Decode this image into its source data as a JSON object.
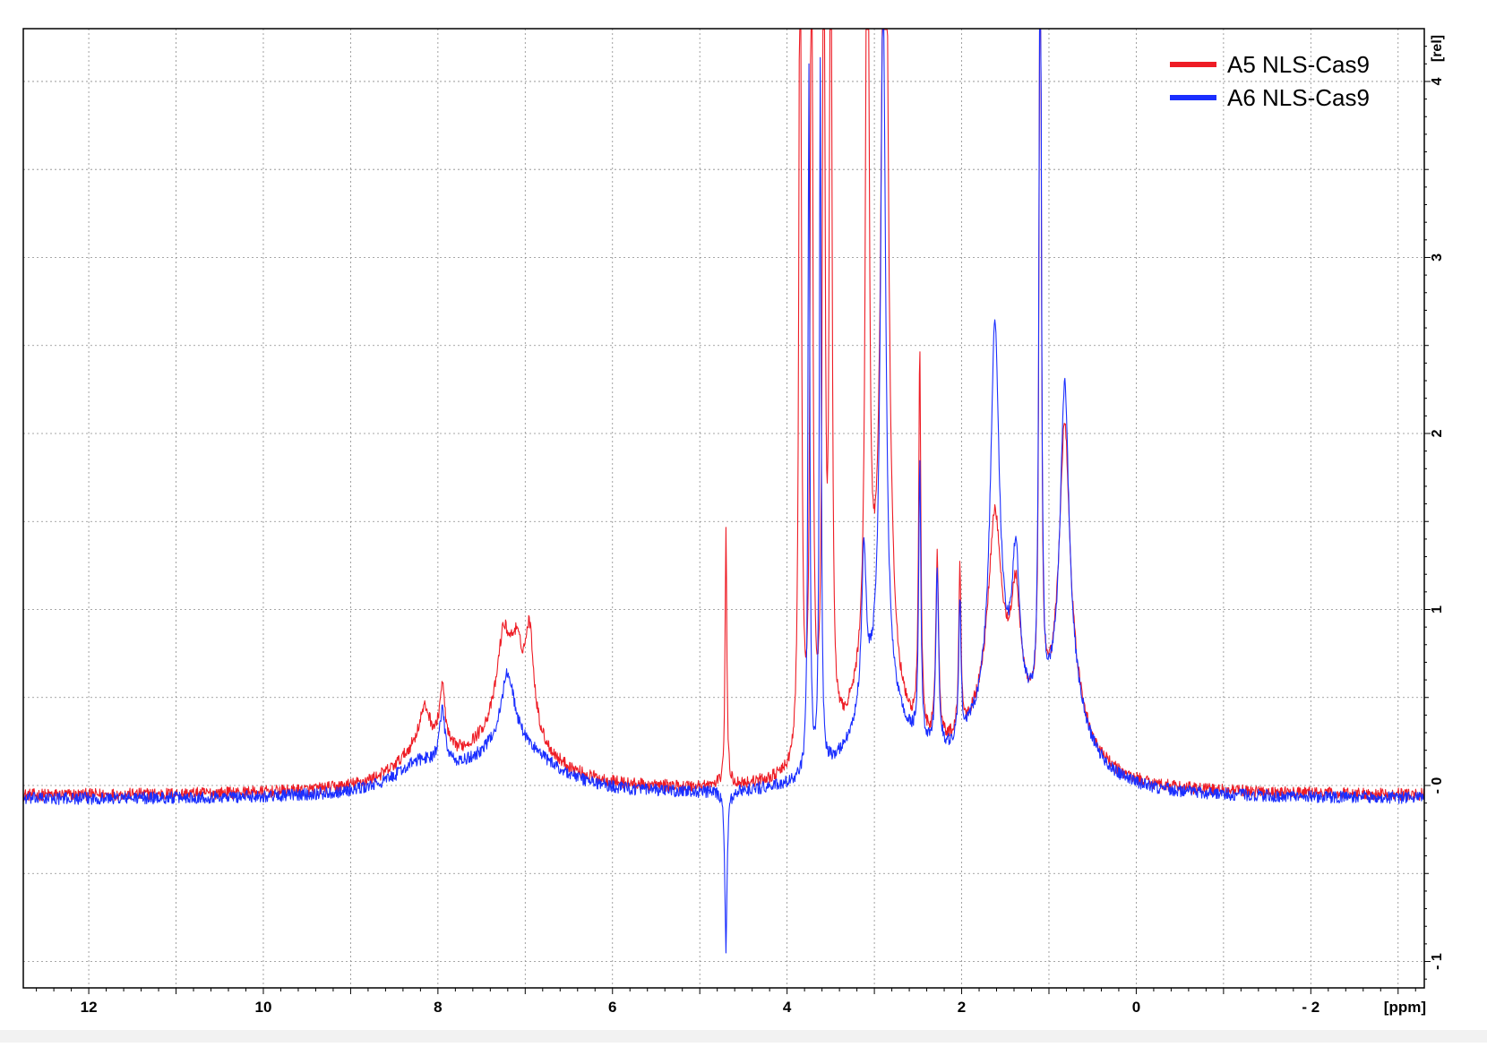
{
  "chart_data": {
    "type": "line",
    "title": "",
    "xlabel": "[ppm]",
    "ylabel": "[rel]",
    "xlim": [
      12.75,
      -3.3
    ],
    "ylim": [
      -1.15,
      4.3
    ],
    "x_reversed": true,
    "grid": true,
    "legend_position": "top-right",
    "x_ticks": [
      12,
      10,
      8,
      6,
      4,
      2,
      0,
      -2
    ],
    "x_tick_labels": [
      "12",
      "10",
      "8",
      "6",
      "4",
      "2",
      "0",
      "- 2"
    ],
    "y_ticks": [
      -1,
      0,
      1,
      2,
      3,
      4
    ],
    "y_tick_labels": [
      "- 1",
      "- 0",
      "1",
      "2",
      "3",
      "4"
    ],
    "series": [
      {
        "name": "A5 NLS-Cas9",
        "color": "#ee1c25",
        "baseline": -0.06,
        "noise": 0.035,
        "peaks": [
          {
            "ppm": 8.15,
            "height": 0.22,
            "width": 0.08
          },
          {
            "ppm": 7.95,
            "height": 0.35,
            "width": 0.04
          },
          {
            "ppm": 7.25,
            "height": 0.48,
            "width": 0.09
          },
          {
            "ppm": 7.1,
            "height": 0.4,
            "width": 0.09
          },
          {
            "ppm": 6.95,
            "height": 0.55,
            "width": 0.06
          },
          {
            "ppm": 4.7,
            "height": 1.45,
            "width": 0.012
          },
          {
            "ppm": 3.85,
            "height": 6.0,
            "width": 0.015
          },
          {
            "ppm": 3.72,
            "height": 6.0,
            "width": 0.015
          },
          {
            "ppm": 3.58,
            "height": 6.0,
            "width": 0.015
          },
          {
            "ppm": 3.5,
            "height": 6.0,
            "width": 0.015
          },
          {
            "ppm": 3.08,
            "height": 6.0,
            "width": 0.02
          },
          {
            "ppm": 2.88,
            "height": 6.0,
            "width": 0.04
          },
          {
            "ppm": 2.48,
            "height": 2.15,
            "width": 0.015
          },
          {
            "ppm": 2.28,
            "height": 1.05,
            "width": 0.02
          },
          {
            "ppm": 2.02,
            "height": 0.95,
            "width": 0.015
          },
          {
            "ppm": 1.62,
            "height": 1.05,
            "width": 0.09
          },
          {
            "ppm": 1.38,
            "height": 0.6,
            "width": 0.06
          },
          {
            "ppm": 1.1,
            "height": 6.0,
            "width": 0.012
          },
          {
            "ppm": 0.82,
            "height": 1.5,
            "width": 0.07
          }
        ],
        "humps": [
          {
            "ppm": 7.2,
            "height": 0.33,
            "width": 0.55
          },
          {
            "ppm": 8.2,
            "height": 0.18,
            "width": 0.35
          },
          {
            "ppm": 3.0,
            "height": 0.6,
            "width": 0.35
          },
          {
            "ppm": 1.55,
            "height": 0.45,
            "width": 0.45
          },
          {
            "ppm": 0.8,
            "height": 0.45,
            "width": 0.25
          }
        ]
      },
      {
        "name": "A6 NLS-Cas9",
        "color": "#1a2eff",
        "baseline": -0.08,
        "noise": 0.035,
        "peaks": [
          {
            "ppm": 7.95,
            "height": 0.3,
            "width": 0.04
          },
          {
            "ppm": 7.2,
            "height": 0.4,
            "width": 0.09
          },
          {
            "ppm": 4.7,
            "height": -0.9,
            "width": 0.015
          },
          {
            "ppm": 3.75,
            "height": 4.0,
            "width": 0.012
          },
          {
            "ppm": 3.62,
            "height": 4.0,
            "width": 0.012
          },
          {
            "ppm": 3.12,
            "height": 0.9,
            "width": 0.03
          },
          {
            "ppm": 2.9,
            "height": 4.0,
            "width": 0.035
          },
          {
            "ppm": 2.48,
            "height": 1.6,
            "width": 0.015
          },
          {
            "ppm": 2.28,
            "height": 1.0,
            "width": 0.02
          },
          {
            "ppm": 2.02,
            "height": 0.8,
            "width": 0.015
          },
          {
            "ppm": 1.62,
            "height": 2.1,
            "width": 0.06
          },
          {
            "ppm": 1.38,
            "height": 0.8,
            "width": 0.05
          },
          {
            "ppm": 1.1,
            "height": 5.5,
            "width": 0.014
          },
          {
            "ppm": 0.82,
            "height": 1.7,
            "width": 0.06
          }
        ],
        "humps": [
          {
            "ppm": 7.15,
            "height": 0.3,
            "width": 0.55
          },
          {
            "ppm": 8.2,
            "height": 0.15,
            "width": 0.35
          },
          {
            "ppm": 2.95,
            "height": 0.55,
            "width": 0.35
          },
          {
            "ppm": 1.55,
            "height": 0.5,
            "width": 0.4
          },
          {
            "ppm": 0.8,
            "height": 0.5,
            "width": 0.25
          }
        ]
      }
    ]
  }
}
